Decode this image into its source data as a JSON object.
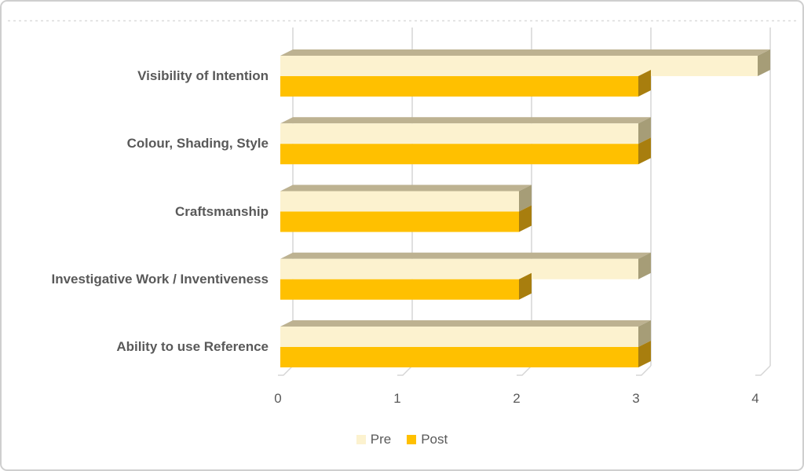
{
  "chart_data": {
    "type": "bar",
    "orientation": "horizontal",
    "style": "3d-bevel",
    "title": "",
    "categories": [
      "Visibility of Intention",
      "Colour, Shading, Style",
      "Craftsmanship",
      "Investigative Work / Inventiveness",
      "Ability to use Reference"
    ],
    "series": [
      {
        "name": "Pre",
        "values": [
          4,
          3,
          2,
          3,
          3
        ]
      },
      {
        "name": "Post",
        "values": [
          3,
          3,
          2,
          2,
          3
        ]
      }
    ],
    "x_ticks": [
      "0",
      "1",
      "2",
      "3",
      "4"
    ],
    "xlim": [
      0,
      4
    ],
    "grid": true,
    "legend_position": "bottom",
    "colors": {
      "pre_fill": "#FCF2CF",
      "pre_top_bevel": "#BDB291",
      "pre_side_bevel": "#A69D77",
      "post_fill": "#FFC000",
      "post_side_bevel": "#A87E0E",
      "gridline": "#D5D5D5",
      "dotted_line": "#DBDBDB",
      "text": "#595959",
      "frame_border": "#CFCFCF"
    }
  }
}
